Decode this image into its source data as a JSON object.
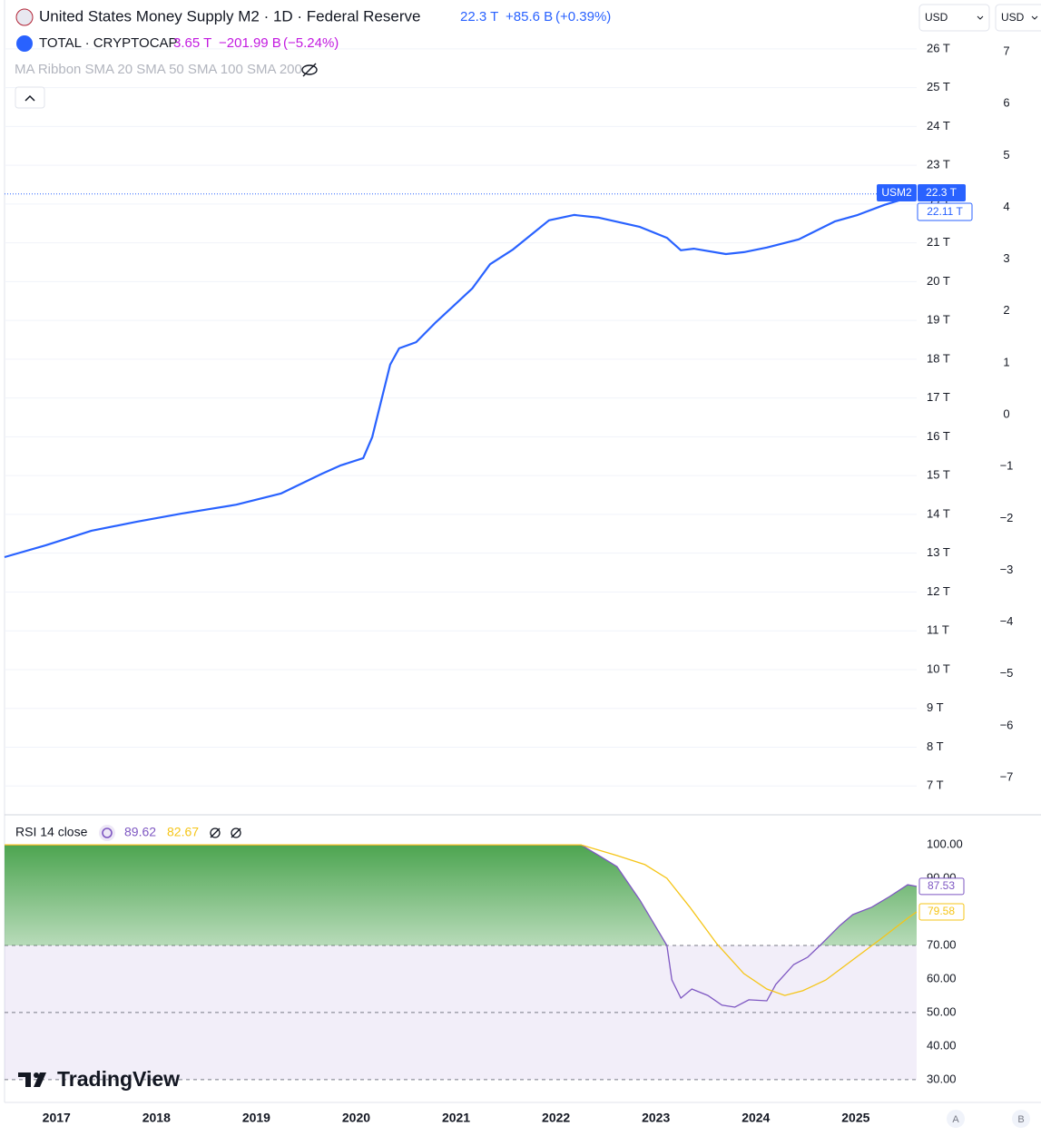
{
  "header": {
    "m2": {
      "value": "22.3 T",
      "change": "+85.6 B",
      "change_pct": "(+0.39%)"
    },
    "crypto": {
      "title": "TOTAL · CRYPTOCAP",
      "value": "3.65 T",
      "change": "−201.99 B",
      "change_pct": "(−5.24%)"
    },
    "indicator": "MA Ribbon SMA 20 SMA 50 SMA 100 SMA 200",
    "currency": [
      "USD",
      "USD"
    ],
    "scale_buttons": [
      "A",
      "B"
    ],
    "brand": "TradingView"
  },
  "chart_data": [
    {
      "type": "line",
      "title": "United States Money Supply M2 · 1D · Federal Reserve",
      "xlim": [
        2016.48,
        2025.61
      ],
      "ylim": [
        6.28,
        27.26
      ],
      "grid": true,
      "yticks": [
        {
          "value": 26,
          "label": "26 T"
        },
        {
          "value": 25,
          "label": "25 T"
        },
        {
          "value": 24,
          "label": "24 T"
        },
        {
          "value": 23,
          "label": "23 T"
        },
        {
          "value": 22,
          "label": "22 T"
        },
        {
          "value": 21,
          "label": "21 T"
        },
        {
          "value": 20,
          "label": "20 T"
        },
        {
          "value": 19,
          "label": "19 T"
        },
        {
          "value": 18,
          "label": "18 T"
        },
        {
          "value": 17,
          "label": "17 T"
        },
        {
          "value": 16,
          "label": "16 T"
        },
        {
          "value": 15,
          "label": "15 T"
        },
        {
          "value": 14,
          "label": "14 T"
        },
        {
          "value": 13,
          "label": "13 T"
        },
        {
          "value": 12,
          "label": "12 T"
        },
        {
          "value": 11,
          "label": "11 T"
        },
        {
          "value": 10,
          "label": "10 T"
        },
        {
          "value": 9,
          "label": "9 T"
        },
        {
          "value": 8,
          "label": "8 T"
        },
        {
          "value": 7,
          "label": "7 T"
        }
      ],
      "y2lim": [
        -7.7,
        8.0
      ],
      "y2ticks": [
        7,
        6,
        5,
        4,
        3,
        2,
        1,
        0,
        {
          "value": -1,
          "label": "−1"
        },
        {
          "value": -2,
          "label": "−2"
        },
        {
          "value": -3,
          "label": "−3"
        },
        {
          "value": -4,
          "label": "−4"
        },
        {
          "value": -5,
          "label": "−5"
        },
        {
          "value": -6,
          "label": "−6"
        },
        {
          "value": -7,
          "label": "−7"
        }
      ],
      "series": [
        {
          "name": "USM2",
          "color": "#2962ff",
          "x": [
            2016.48,
            2016.89,
            2017.35,
            2017.8,
            2018.25,
            2018.8,
            2019.25,
            2019.66,
            2019.84,
            2020.07,
            2020.16,
            2020.34,
            2020.43,
            2020.6,
            2020.8,
            2021.16,
            2021.34,
            2021.57,
            2021.93,
            2022.18,
            2022.43,
            2022.84,
            2023.11,
            2023.25,
            2023.38,
            2023.7,
            2023.88,
            2024.11,
            2024.43,
            2024.79,
            2025.02,
            2025.29,
            2025.52,
            2025.59
          ],
          "values": [
            12.9,
            13.2,
            13.58,
            13.81,
            14.02,
            14.25,
            14.54,
            15.05,
            15.26,
            15.45,
            15.99,
            17.86,
            18.28,
            18.44,
            18.96,
            19.82,
            20.45,
            20.83,
            21.58,
            21.72,
            21.65,
            21.41,
            21.13,
            20.81,
            20.85,
            20.71,
            20.76,
            20.88,
            21.09,
            21.55,
            21.72,
            21.98,
            22.16,
            22.26
          ]
        }
      ],
      "price_labels": [
        "22.3 T",
        "22.11 T"
      ]
    },
    {
      "type": "rsi",
      "title": "RSI 14 close",
      "xlim": [
        2016.48,
        2025.61
      ],
      "ylim": [
        23.2,
        108.4
      ],
      "xticks": [
        2017,
        2018,
        2019,
        2020,
        2021,
        2022,
        2023,
        2024,
        2025
      ],
      "yticks": [
        {
          "value": 100,
          "label": "100.00"
        },
        {
          "value": 90,
          "label": "90.00"
        },
        {
          "value": 70,
          "label": "70.00"
        },
        {
          "value": 60,
          "label": "60.00"
        },
        {
          "value": 50,
          "label": "50.00"
        },
        {
          "value": 40,
          "label": "40.00"
        },
        {
          "value": 30,
          "label": "30.00"
        }
      ],
      "bands": [
        30,
        50,
        70
      ],
      "series": [
        {
          "color": "#7e57c2",
          "legend_value": "89.62",
          "last_label": "87.53",
          "x": [
            2016.48,
            2022.25,
            2022.43,
            2022.61,
            2022.84,
            2023.11,
            2023.16,
            2023.25,
            2023.36,
            2023.52,
            2023.66,
            2023.79,
            2023.93,
            2024.11,
            2024.2,
            2024.38,
            2024.52,
            2024.66,
            2024.84,
            2024.97,
            2025.16,
            2025.34,
            2025.52,
            2025.61
          ],
          "values": [
            100,
            100,
            96.8,
            93.5,
            83.5,
            70,
            59.7,
            54.3,
            57,
            55.1,
            52.2,
            51.6,
            53.8,
            53.5,
            58.4,
            64.3,
            66.5,
            70.5,
            75.9,
            79.2,
            81.4,
            84.6,
            88.1,
            87.6
          ]
        },
        {
          "color": "#f5c518",
          "legend_value": "82.67",
          "last_label": "79.58",
          "x": [
            2016.48,
            2022.25,
            2022.61,
            2022.89,
            2023.11,
            2023.34,
            2023.61,
            2023.88,
            2024.11,
            2024.29,
            2024.47,
            2024.7,
            2024.97,
            2025.25,
            2025.52,
            2025.61
          ],
          "values": [
            100,
            100,
            96.8,
            94.1,
            90,
            81.4,
            70.5,
            61.6,
            57,
            55.1,
            56.5,
            59.7,
            65.7,
            71.9,
            78.1,
            80
          ]
        }
      ]
    }
  ]
}
